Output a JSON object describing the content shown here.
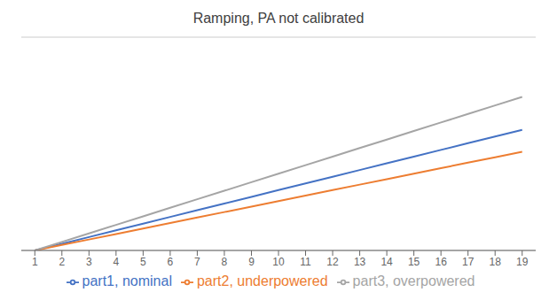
{
  "chart_data": {
    "type": "line",
    "title": "Ramping, PA not calibrated",
    "x": [
      1,
      2,
      3,
      4,
      5,
      6,
      7,
      8,
      9,
      10,
      11,
      12,
      13,
      14,
      15,
      16,
      17,
      18,
      19
    ],
    "series": [
      {
        "name": "part1, nominal",
        "color": "#4472C4",
        "values": [
          0.0,
          0.11,
          0.22,
          0.33,
          0.44,
          0.55,
          0.66,
          0.77,
          0.88,
          0.99,
          1.1,
          1.21,
          1.32,
          1.43,
          1.54,
          1.65,
          1.76,
          1.87,
          1.98
        ]
      },
      {
        "name": "part2, underpowered",
        "color": "#ED7D31",
        "values": [
          0.0,
          0.09,
          0.18,
          0.27,
          0.36,
          0.45,
          0.54,
          0.63,
          0.72,
          0.81,
          0.9,
          0.99,
          1.08,
          1.17,
          1.26,
          1.35,
          1.44,
          1.53,
          1.62
        ]
      },
      {
        "name": "part3, overpowered",
        "color": "#A5A5A5",
        "values": [
          0.0,
          0.14,
          0.28,
          0.42,
          0.56,
          0.7,
          0.84,
          0.98,
          1.12,
          1.26,
          1.4,
          1.54,
          1.68,
          1.82,
          1.96,
          2.1,
          2.24,
          2.38,
          2.52
        ]
      }
    ],
    "xlim": [
      0.5,
      19.5
    ],
    "xticks": [
      1,
      2,
      3,
      4,
      5,
      6,
      7,
      8,
      9,
      10,
      11,
      12,
      13,
      14,
      15,
      16,
      17,
      18,
      19
    ],
    "ylim": [
      0,
      3.5
    ],
    "yticks": [
      0,
      0.7,
      1.4,
      2.1,
      2.8,
      3.5
    ],
    "grid": true,
    "legend": "bottom",
    "tick_labels": "x"
  }
}
